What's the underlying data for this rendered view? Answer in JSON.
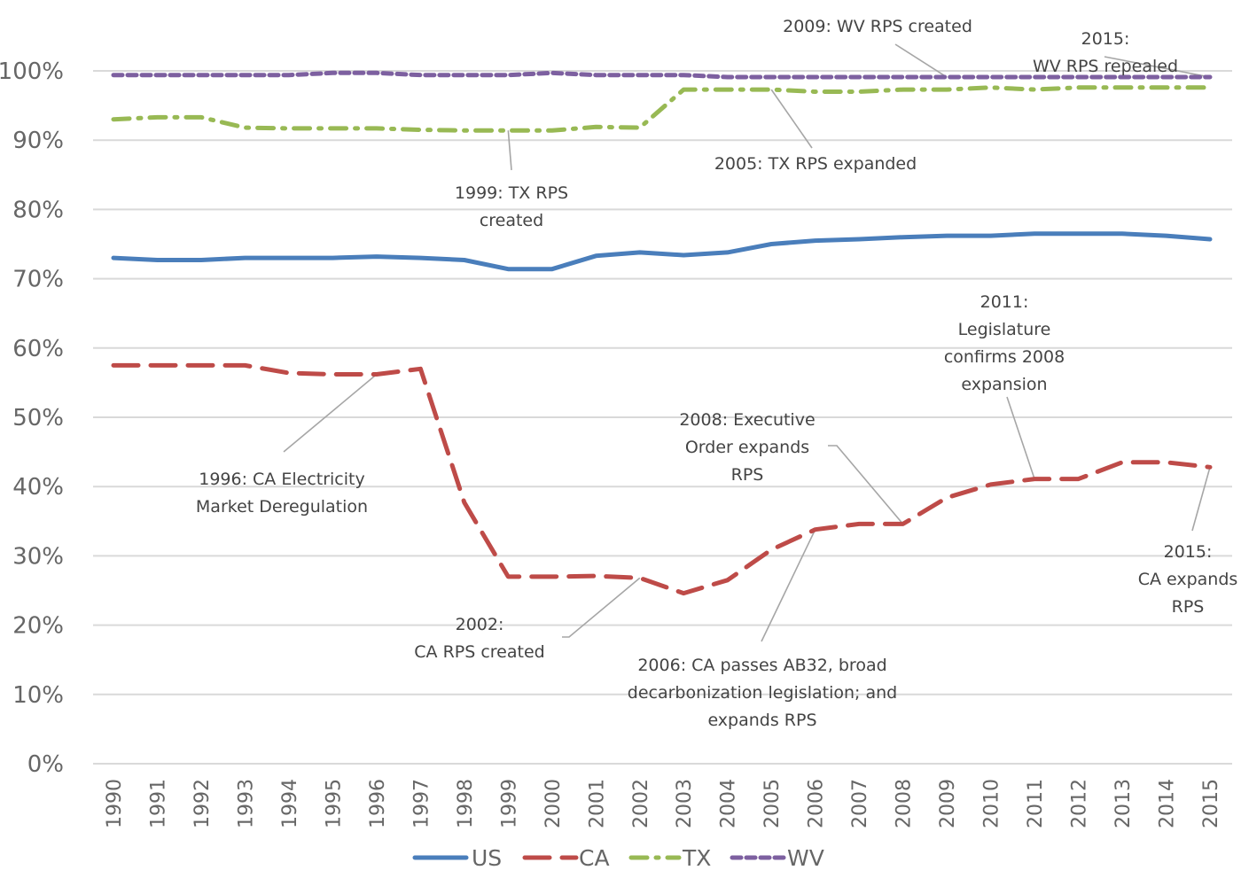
{
  "chart_data": {
    "type": "line",
    "title": "",
    "xlabel": "",
    "ylabel": "",
    "ylim": [
      0,
      100
    ],
    "grid": true,
    "legend_position": "bottom",
    "y_ticks": [
      "0%",
      "10%",
      "20%",
      "30%",
      "40%",
      "50%",
      "60%",
      "70%",
      "80%",
      "90%",
      "100%"
    ],
    "y_tick_values": [
      0,
      10,
      20,
      30,
      40,
      50,
      60,
      70,
      80,
      90,
      100
    ],
    "x": [
      "1990",
      "1991",
      "1992",
      "1993",
      "1994",
      "1995",
      "1996",
      "1997",
      "1998",
      "1999",
      "2000",
      "2001",
      "2002",
      "2003",
      "2004",
      "2005",
      "2006",
      "2007",
      "2008",
      "2009",
      "2010",
      "2011",
      "2012",
      "2013",
      "2014",
      "2015"
    ],
    "series": [
      {
        "name": "US",
        "color": "#4a7ebb",
        "style": "solid",
        "values": [
          73.0,
          72.7,
          72.7,
          73.0,
          73.0,
          73.0,
          73.2,
          73.0,
          72.7,
          71.4,
          71.4,
          73.3,
          73.8,
          73.4,
          73.8,
          75.0,
          75.5,
          75.7,
          76.0,
          76.2,
          76.2,
          76.5,
          76.5,
          76.5,
          76.2,
          75.7
        ]
      },
      {
        "name": "CA",
        "color": "#be4b48",
        "style": "long-dash",
        "values": [
          57.5,
          57.5,
          57.5,
          57.5,
          56.4,
          56.2,
          56.2,
          57.0,
          37.7,
          27.0,
          27.0,
          27.1,
          26.8,
          24.6,
          26.5,
          30.9,
          33.8,
          34.6,
          34.6,
          38.4,
          40.3,
          41.1,
          41.1,
          43.5,
          43.5,
          42.8
        ]
      },
      {
        "name": "TX",
        "color": "#98b954",
        "style": "dash-dot",
        "values": [
          93.0,
          93.3,
          93.3,
          91.8,
          91.7,
          91.7,
          91.7,
          91.5,
          91.4,
          91.4,
          91.4,
          91.9,
          91.8,
          97.3,
          97.3,
          97.3,
          97.0,
          97.0,
          97.3,
          97.3,
          97.6,
          97.3,
          97.6,
          97.6,
          97.6,
          97.6
        ]
      },
      {
        "name": "WV",
        "color": "#7d60a0",
        "style": "short-dash",
        "values": [
          99.4,
          99.4,
          99.4,
          99.4,
          99.4,
          99.7,
          99.7,
          99.4,
          99.4,
          99.4,
          99.7,
          99.4,
          99.4,
          99.4,
          99.1,
          99.1,
          99.1,
          99.1,
          99.1,
          99.1,
          99.1,
          99.1,
          99.1,
          99.1,
          99.1,
          99.1
        ]
      }
    ],
    "annotations": [
      {
        "series": "TX",
        "year": "1999",
        "lines": [
          "1999: TX RPS",
          "created"
        ]
      },
      {
        "series": "TX",
        "year": "2005",
        "lines": [
          "2005: TX RPS expanded"
        ]
      },
      {
        "series": "WV",
        "year": "2009",
        "lines": [
          "2009: WV RPS created"
        ]
      },
      {
        "series": "WV",
        "year": "2015",
        "lines": [
          "2015:",
          "WV RPS repealed"
        ]
      },
      {
        "series": "CA",
        "year": "1996",
        "lines": [
          "1996: CA Electricity",
          "Market Deregulation"
        ]
      },
      {
        "series": "CA",
        "year": "2002",
        "lines": [
          "2002:",
          "CA RPS created"
        ]
      },
      {
        "series": "CA",
        "year": "2006",
        "lines": [
          "2006: CA passes AB32, broad",
          "decarbonization legislation; and",
          "expands RPS"
        ]
      },
      {
        "series": "CA",
        "year": "2008",
        "lines": [
          "2008: Executive",
          "Order expands",
          "RPS"
        ]
      },
      {
        "series": "CA",
        "year": "2011",
        "lines": [
          "2011:",
          "Legislature",
          "confirms 2008",
          "expansion"
        ]
      },
      {
        "series": "CA",
        "year": "2015",
        "lines": [
          "2015:",
          "CA expands",
          "RPS"
        ]
      }
    ]
  }
}
